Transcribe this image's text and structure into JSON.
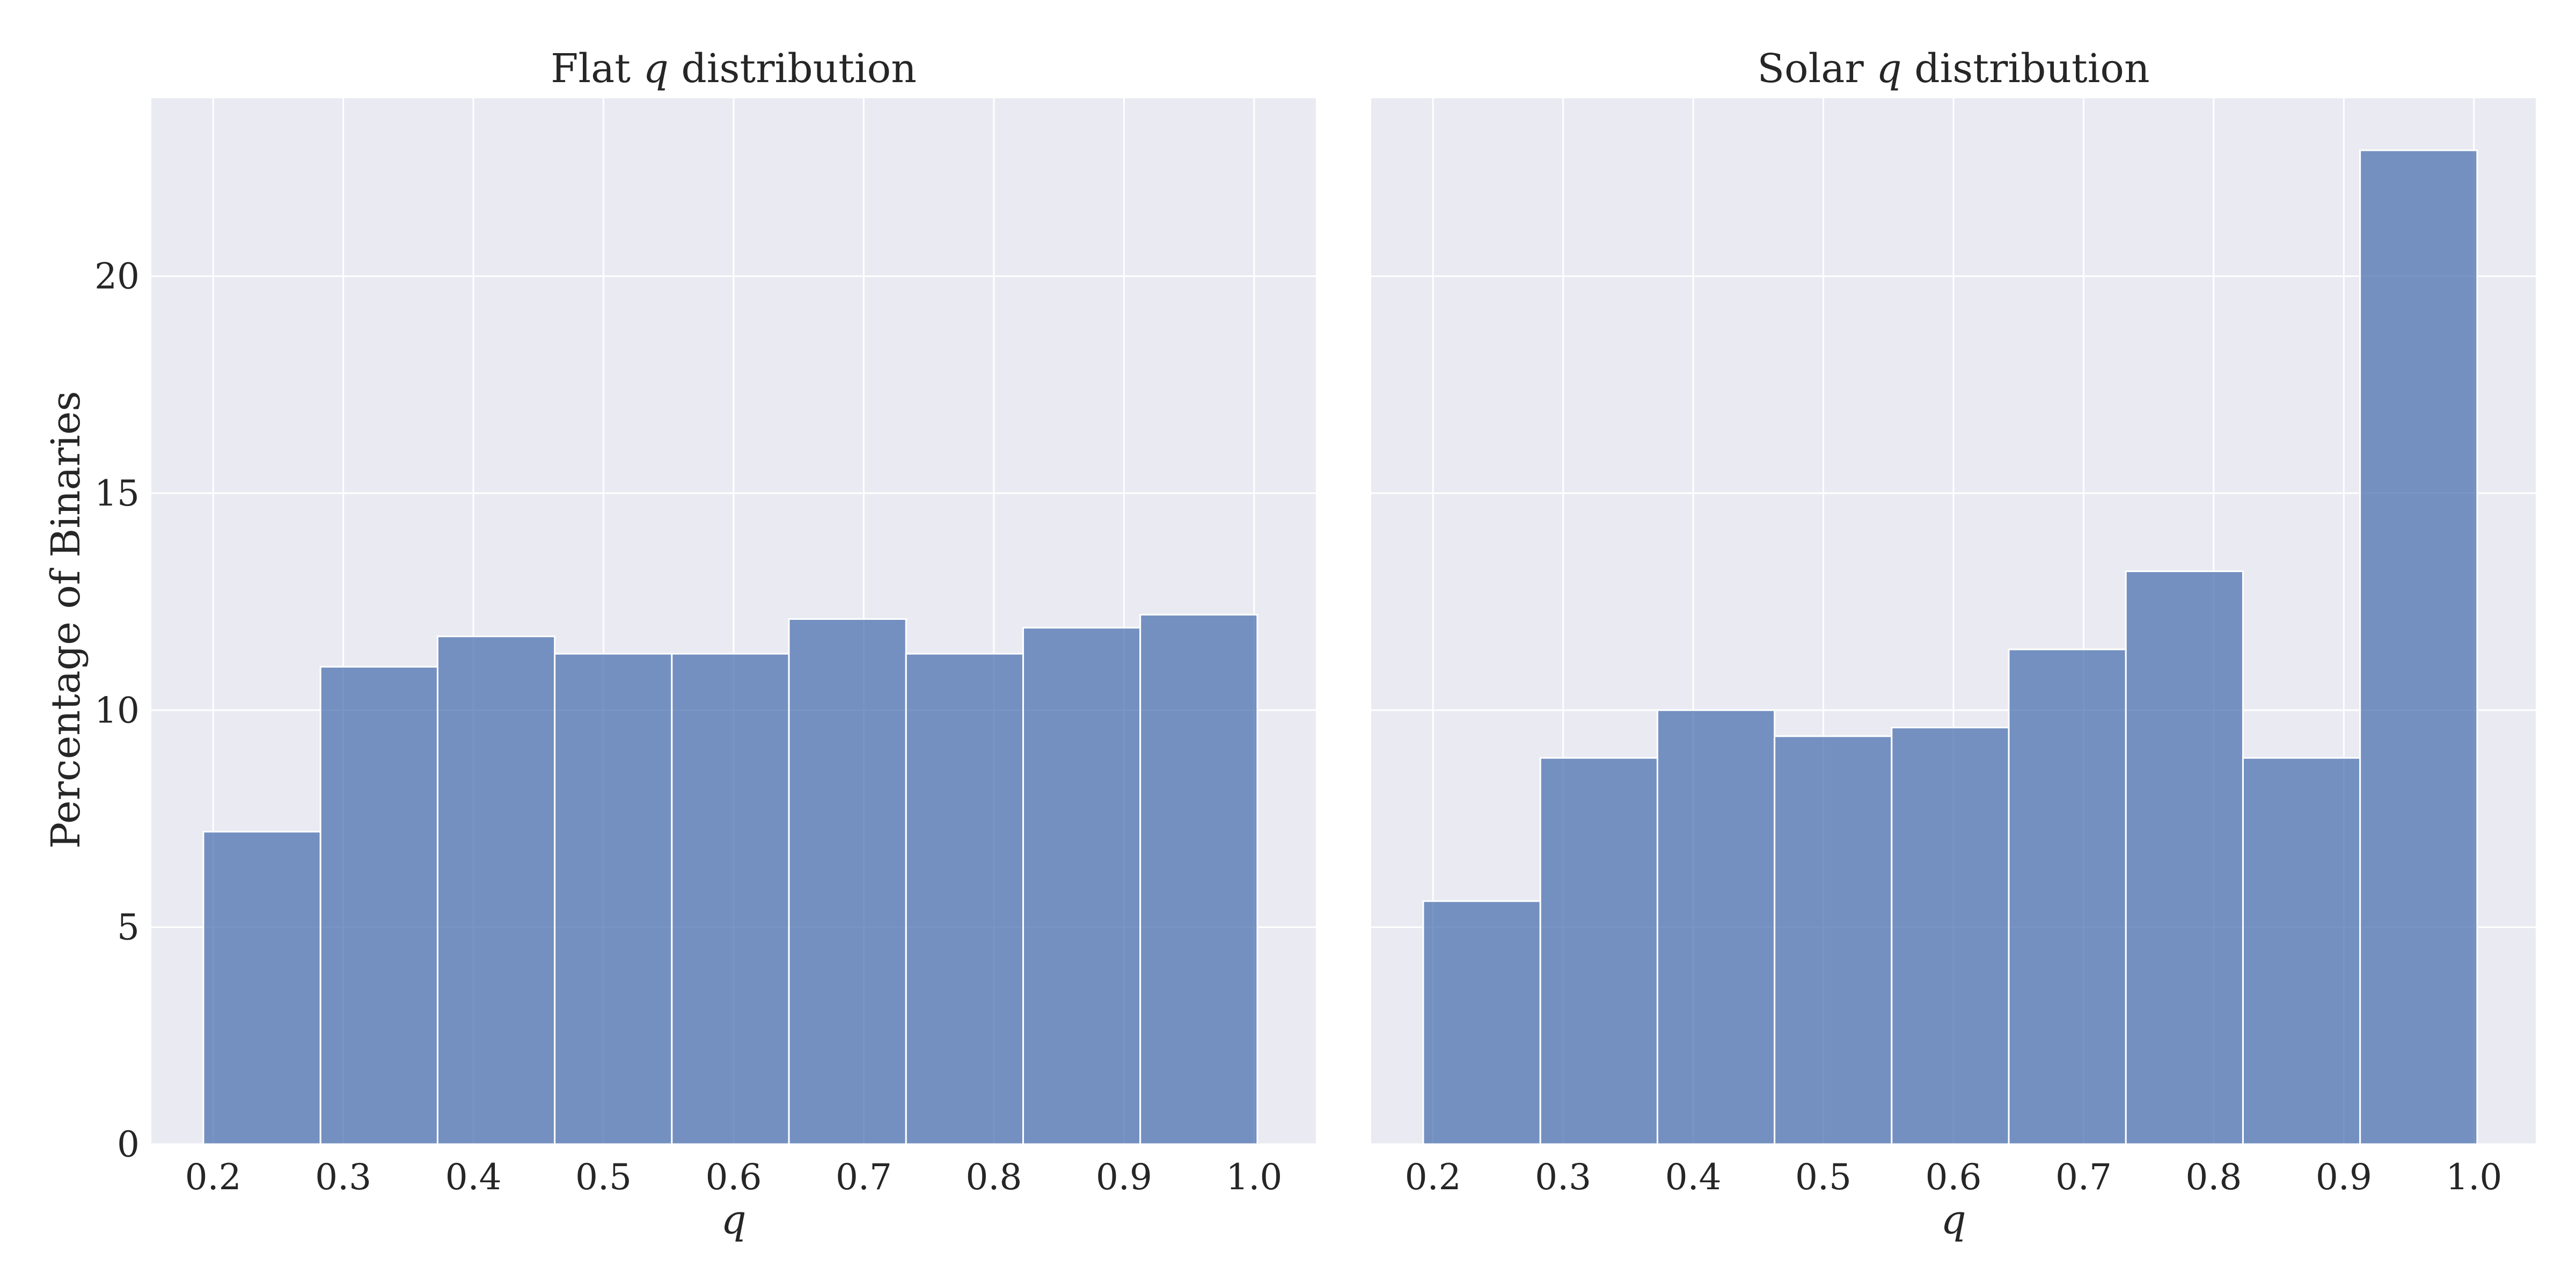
{
  "figure": {
    "ylabel": "Percentage of Binaries",
    "colors": {
      "bar_fill": "#4c72b0",
      "axes_bg": "#eaeaf2",
      "grid": "#ffffff",
      "text": "#262626"
    }
  },
  "chart_data": [
    {
      "type": "bar",
      "title": "Flat q distribution",
      "title_parts": {
        "before": "Flat ",
        "var": "q",
        "after": " distribution"
      },
      "xlabel": "q",
      "ylabel": "Percentage of Binaries",
      "xlim": [
        0.1525,
        1.0475
      ],
      "ylim": [
        0,
        24.1
      ],
      "xticks": [
        0.2,
        0.3,
        0.4,
        0.5,
        0.6,
        0.7,
        0.8,
        0.9,
        1.0
      ],
      "xtick_labels": [
        "0.2",
        "0.3",
        "0.4",
        "0.5",
        "0.6",
        "0.7",
        "0.8",
        "0.9",
        "1.0"
      ],
      "yticks": [
        0,
        5,
        10,
        15,
        20
      ],
      "ytick_labels": [
        "0",
        "5",
        "10",
        "15",
        "20"
      ],
      "bin_edges": [
        0.1925,
        0.2825,
        0.3725,
        0.4625,
        0.5525,
        0.6425,
        0.7325,
        0.8225,
        0.9125,
        1.0025
      ],
      "values": [
        7.2,
        11.0,
        11.7,
        11.3,
        11.3,
        12.1,
        11.3,
        11.9,
        12.2
      ],
      "grid": true
    },
    {
      "type": "bar",
      "title": "Solar q distribution",
      "title_parts": {
        "before": "Solar ",
        "var": "q",
        "after": " distribution"
      },
      "xlabel": "q",
      "ylabel": "",
      "xlim": [
        0.1525,
        1.0475
      ],
      "ylim": [
        0,
        24.1
      ],
      "xticks": [
        0.2,
        0.3,
        0.4,
        0.5,
        0.6,
        0.7,
        0.8,
        0.9,
        1.0
      ],
      "xtick_labels": [
        "0.2",
        "0.3",
        "0.4",
        "0.5",
        "0.6",
        "0.7",
        "0.8",
        "0.9",
        "1.0"
      ],
      "yticks": [
        0,
        5,
        10,
        15,
        20
      ],
      "ytick_labels": [
        "",
        "",
        "",
        "",
        ""
      ],
      "bin_edges": [
        0.1925,
        0.2825,
        0.3725,
        0.4625,
        0.5525,
        0.6425,
        0.7325,
        0.8225,
        0.9125,
        1.0025
      ],
      "values": [
        5.6,
        8.9,
        10.0,
        9.4,
        9.6,
        11.4,
        13.2,
        8.9,
        22.9
      ],
      "grid": true
    }
  ]
}
